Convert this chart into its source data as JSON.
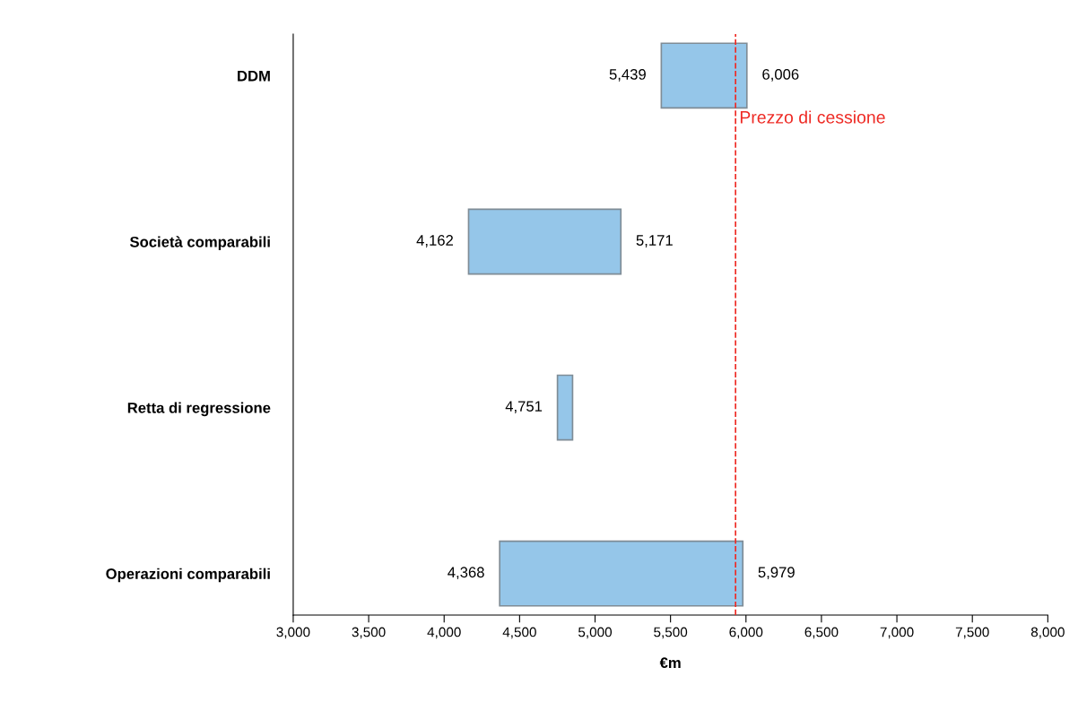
{
  "chart_data": {
    "type": "bar",
    "orientation": "horizontal",
    "xlabel": "€m",
    "categories": [
      "DDM",
      "Società comparabili",
      "Retta di regressione",
      "Operazioni comparabili"
    ],
    "base": [
      5439,
      4162,
      4751,
      4368
    ],
    "values": [
      567,
      1009,
      100,
      1611
    ],
    "color": "#95c6e9",
    "xlim": [
      3000,
      8000
    ],
    "xticks": [
      {
        "value": 3000,
        "label": "3,000"
      },
      {
        "value": 3500,
        "label": "3,500"
      },
      {
        "value": 4000,
        "label": "4,000"
      },
      {
        "value": 4500,
        "label": "4,500"
      },
      {
        "value": 5000,
        "label": "5,000"
      },
      {
        "value": 5500,
        "label": "5,500"
      },
      {
        "value": 6000,
        "label": "6,000"
      },
      {
        "value": 6500,
        "label": "6,500"
      },
      {
        "value": 7000,
        "label": "7,000"
      },
      {
        "value": 7500,
        "label": "7,500"
      },
      {
        "value": 8000,
        "label": "8,000"
      }
    ],
    "ref_lines": [
      {
        "axis": "x",
        "value": 5931,
        "label": "Prezzo di cessione",
        "color": "#ee2a24",
        "line_style": "dashed"
      }
    ],
    "annotations": [
      {
        "text": "5,439",
        "x": 5439,
        "y": "DDM"
      },
      {
        "text": "6,006",
        "x": 6006,
        "y": "DDM"
      },
      {
        "text": "4,162",
        "x": 4162,
        "y": "Società comparabili"
      },
      {
        "text": "5,171",
        "x": 5171,
        "y": "Società comparabili"
      },
      {
        "text": "4,751",
        "x": 4751,
        "y": "Retta di regressione"
      },
      {
        "text": "4,368",
        "x": 4368,
        "y": "Operazioni comparabili"
      },
      {
        "text": "5,979",
        "x": 5979,
        "y": "Operazioni comparabili"
      }
    ],
    "grid": false,
    "legend": false
  }
}
